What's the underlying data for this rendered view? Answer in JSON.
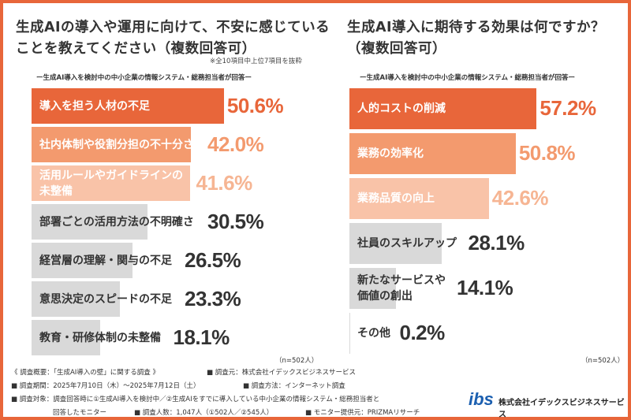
{
  "colors": {
    "primary": "#e8663a",
    "secondary": "#f39a6e",
    "tertiary": "#f9c3a8",
    "gray": "#d9d9d9",
    "tertiary_text": "#f6b593"
  },
  "chart_data": [
    {
      "type": "bar",
      "orientation": "horizontal",
      "title_line1": "生成AIの導入や運用に向けて、不安に感じている",
      "title_line2": "ことを教えてください（複数回答可）",
      "note": "※全10項目中上位7項目を抜粋",
      "subtitle": "ー生成AI導入を検討中の中小企業の情報システム・総務担当者が回答ー",
      "sample": "（n=502人）",
      "categories": [
        "導入を担う人材の不足",
        "社内体制や役割分担の不十分さ",
        "活用ルールやガイドラインの\n未整備",
        "部署ごとの活用方法の不明確さ",
        "経営層の理解・関与の不足",
        "意思決定のスピードの不足",
        "教育・研修体制の未整備"
      ],
      "values": [
        50.6,
        42.0,
        41.6,
        30.5,
        26.5,
        23.3,
        18.1
      ],
      "labels": [
        "50.6%",
        "42.0%",
        "41.6%",
        "30.5%",
        "26.5%",
        "23.3%",
        "18.1%"
      ],
      "unit": "%"
    },
    {
      "type": "bar",
      "orientation": "horizontal",
      "title_line1": "生成AI導入に期待する効果は何ですか？",
      "title_line2": "（複数回答可）",
      "subtitle": "ー生成AI導入を検討中の中小企業の情報システム・総務担当者が回答ー",
      "sample": "（n=502人）",
      "categories": [
        "人的コストの削減",
        "業務の効率化",
        "業務品質の向上",
        "社員のスキルアップ",
        "新たなサービスや\n価値の創出",
        "その他"
      ],
      "values": [
        57.2,
        50.8,
        42.6,
        28.1,
        14.1,
        0.2
      ],
      "labels": [
        "57.2%",
        "50.8%",
        "42.6%",
        "28.1%",
        "14.1%",
        "0.2%"
      ],
      "unit": "%"
    }
  ],
  "footer": {
    "line1a": "《 調査概要：「生成AI導入の壁」に関する調査 》",
    "line1b": "■ 調査元：株式会社イデックスビジネスサービス",
    "line2a": "■ 調査期間：2025年7月10日（木）～2025年7月12日（土）",
    "line2b": "■ 調査方法：インターネット調査",
    "line3": "■ 調査対象：調査回答時に①生成AI導入を検討中／②生成AIをすでに導入している中小企業の情報システム・総務担当者と",
    "line4a": "回答したモニター",
    "line4b": "■ 調査人数：1,047人（①502人／②545人）",
    "line4c": "■ モニター提供元：PRIZMAリサーチ"
  },
  "brand": {
    "logo": "ibs",
    "company": "株式会社イデックスビジネスサービス"
  }
}
